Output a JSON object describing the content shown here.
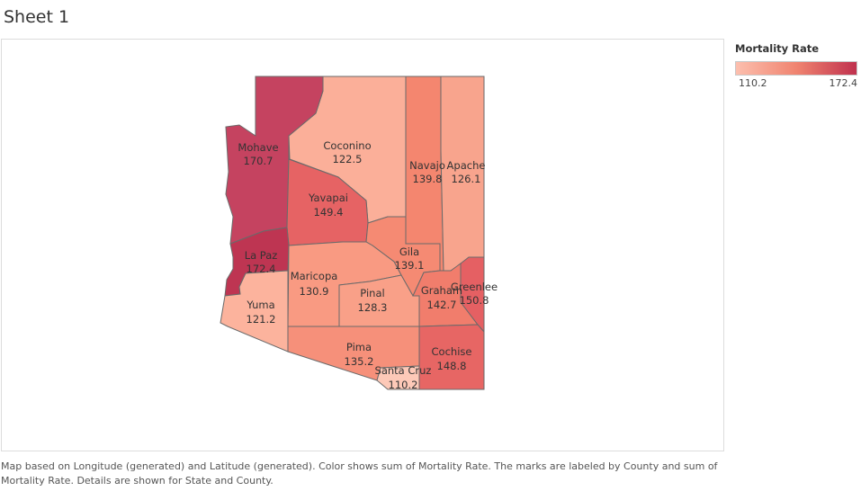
{
  "sheet_title": "Sheet 1",
  "legend": {
    "title": "Mortality Rate",
    "min_label": "110.2",
    "max_label": "172.4",
    "color_low": "#fcbfae",
    "color_high": "#c0314e"
  },
  "counties": {
    "mohave": {
      "name": "Mohave",
      "value": "170.7",
      "color": "#c54360"
    },
    "coconino": {
      "name": "Coconino",
      "value": "122.5",
      "color": "#fbaf99"
    },
    "navajo": {
      "name": "Navajo",
      "value": "139.8",
      "color": "#f4866f"
    },
    "apache": {
      "name": "Apache",
      "value": "126.1",
      "color": "#f8a48d"
    },
    "yavapai": {
      "name": "Yavapai",
      "value": "149.4",
      "color": "#e66364"
    },
    "la_paz": {
      "name": "La Paz",
      "value": "172.4",
      "color": "#be3552"
    },
    "gila": {
      "name": "Gila",
      "value": "139.1",
      "color": "#f58a73"
    },
    "maricopa": {
      "name": "Maricopa",
      "value": "130.9",
      "color": "#f99a82"
    },
    "pinal": {
      "name": "Pinal",
      "value": "128.3",
      "color": "#f9a088"
    },
    "graham": {
      "name": "Graham",
      "value": "142.7",
      "color": "#f17d6c"
    },
    "greenlee": {
      "name": "Greenlee",
      "value": "150.8",
      "color": "#e56063"
    },
    "yuma": {
      "name": "Yuma",
      "value": "121.2",
      "color": "#fcb39d"
    },
    "pima": {
      "name": "Pima",
      "value": "135.2",
      "color": "#f6907a"
    },
    "cochise": {
      "name": "Cochise",
      "value": "148.8",
      "color": "#e76664"
    },
    "santa_cruz": {
      "name": "Santa Cruz",
      "value": "110.2",
      "color": "#fdc9b8"
    }
  },
  "caption": "Map based on Longitude (generated) and Latitude (generated).  Color shows sum of Mortality Rate.  The marks are labeled by County and sum of Mortality Rate.  Details are shown for State and County."
}
